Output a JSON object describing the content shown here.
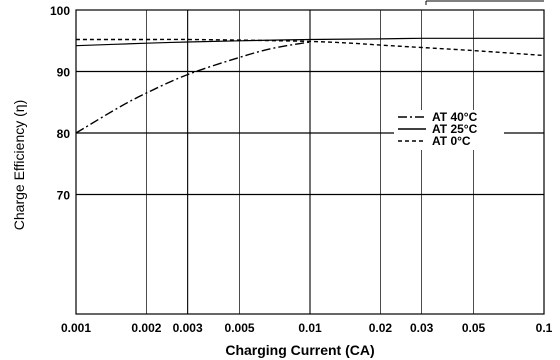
{
  "chart_data": {
    "type": "line",
    "xlabel": "Charging Current (CA)",
    "ylabel": "Charge Efficiency (η)",
    "xscale": "log",
    "xlim": [
      0.001,
      0.1
    ],
    "ylim": [
      50,
      100
    ],
    "x_ticks": [
      0.001,
      0.002,
      0.003,
      0.005,
      0.01,
      0.02,
      0.03,
      0.05,
      0.1
    ],
    "x_tick_labels": [
      "0.001",
      "0.002",
      "0.003",
      "0.005",
      "0.01",
      "0.02",
      "0.03",
      "0.05",
      "0.1"
    ],
    "y_tick_labels": [
      "100",
      "90",
      "80",
      "70"
    ],
    "grid": "on",
    "legend_position": "center-right",
    "series": [
      {
        "name": "AT 40°C",
        "style": "dash-dot",
        "x": [
          0.001,
          0.0015,
          0.002,
          0.003,
          0.005,
          0.007,
          0.01
        ],
        "y": [
          80,
          84,
          86.5,
          89.5,
          92.3,
          93.8,
          94.8
        ]
      },
      {
        "name": "AT 25°C",
        "style": "solid",
        "x": [
          0.001,
          0.002,
          0.003,
          0.005,
          0.01,
          0.02,
          0.03,
          0.05,
          0.1
        ],
        "y": [
          94.2,
          94.6,
          94.8,
          95.0,
          95.2,
          95.3,
          95.4,
          95.4,
          95.4
        ]
      },
      {
        "name": "AT 0°C",
        "style": "dashed",
        "x": [
          0.001,
          0.002,
          0.003,
          0.005,
          0.01,
          0.015,
          0.02,
          0.03,
          0.05,
          0.1
        ],
        "y": [
          95.2,
          95.2,
          95.2,
          95.1,
          94.9,
          94.6,
          94.3,
          93.9,
          93.4,
          92.6
        ]
      }
    ]
  }
}
